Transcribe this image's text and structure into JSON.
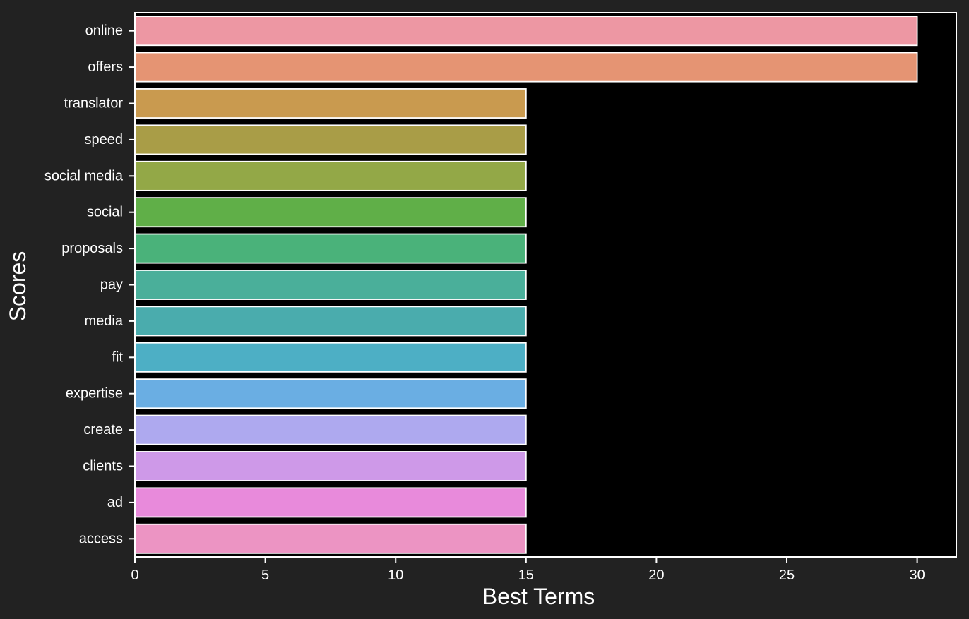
{
  "chart_data": {
    "type": "bar",
    "orientation": "horizontal",
    "title": "",
    "xlabel": "Best Terms",
    "ylabel": "Scores",
    "xlim": [
      0,
      31.5
    ],
    "x_ticks": [
      0,
      5,
      10,
      15,
      20,
      25,
      30
    ],
    "grid": false,
    "legend": "none",
    "categories": [
      "online",
      "offers",
      "translator",
      "speed",
      "social media",
      "social",
      "proposals",
      "pay",
      "media",
      "fit",
      "expertise",
      "create",
      "clients",
      "ad",
      "access"
    ],
    "values": [
      30,
      30,
      15,
      15,
      15,
      15,
      15,
      15,
      15,
      15,
      15,
      15,
      15,
      15,
      15
    ],
    "colors": [
      "#ED97A3",
      "#E59473",
      "#C99A4F",
      "#A99D47",
      "#93A847",
      "#60AF48",
      "#4AB27A",
      "#4AAF9A",
      "#4AACAD",
      "#4DAFC5",
      "#6AAEE3",
      "#AEA9EF",
      "#CE99E8",
      "#E88ADB",
      "#EC94C3"
    ],
    "theme": {
      "figure_bg": "#222222",
      "axes_bg": "#000000",
      "foreground": "#ffffff"
    }
  }
}
